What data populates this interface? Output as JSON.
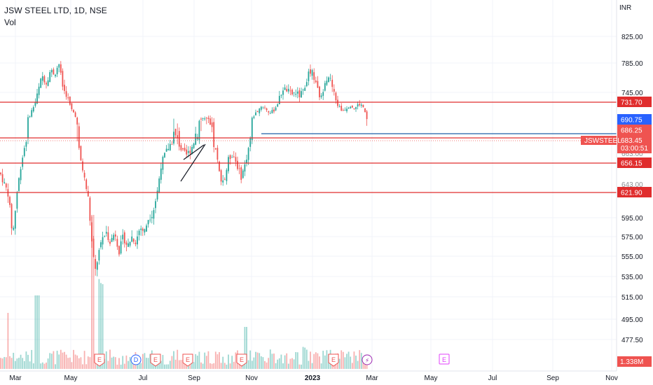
{
  "header": {
    "title": "JSW STEEL LTD, 1D, NSE",
    "volume_label": "Vol",
    "currency": "INR"
  },
  "colors": {
    "up": "#26a69a",
    "down": "#ef5350",
    "level": "#e02d2d",
    "trend": "#1e5fa8",
    "grid": "#f0f3fa",
    "earnings": "#ef5350",
    "dividend": "#2962ff",
    "split": "#9c27b0",
    "future_earnings": "#e040fb"
  },
  "chart_data": {
    "type": "candlestick",
    "symbol": "JSWSTEEL",
    "y_ticks": [
      825.0,
      785.0,
      745.0,
      595.0,
      575.0,
      555.0,
      535.0,
      515.0,
      495.0,
      477.5
    ],
    "x_ticks": [
      {
        "label": "Mar",
        "bold": false
      },
      {
        "label": "May",
        "bold": false
      },
      {
        "label": "Jul",
        "bold": false
      },
      {
        "label": "Sep",
        "bold": false
      },
      {
        "label": "Nov",
        "bold": false
      },
      {
        "label": "2023",
        "bold": true
      },
      {
        "label": "Mar",
        "bold": false
      },
      {
        "label": "May",
        "bold": false
      },
      {
        "label": "Jul",
        "bold": false
      },
      {
        "label": "Sep",
        "bold": false
      },
      {
        "label": "Nov",
        "bold": false
      }
    ],
    "horizontal_levels": [
      {
        "value": 731.7,
        "label": "731.70"
      },
      {
        "value": 683.45,
        "label": "683.45"
      },
      {
        "value": 656.15,
        "label": "656.15"
      },
      {
        "value": 621.9,
        "label": "621.90"
      }
    ],
    "price_tags": [
      {
        "value": 690.75,
        "label": "690.75",
        "color": "#2962ff"
      },
      {
        "value": 686.25,
        "label": "686.25",
        "color": "#ef5350"
      }
    ],
    "last_price": {
      "symbol": "JSWSTEEL",
      "value": 683.45,
      "label": "683.45",
      "countdown": "03:00:51"
    },
    "trend_line_value": 687.0,
    "volume_label": "1.338M",
    "events": [
      {
        "type": "E",
        "label": "E"
      },
      {
        "type": "D",
        "label": "D"
      },
      {
        "type": "E",
        "label": "E"
      },
      {
        "type": "E",
        "label": "E"
      },
      {
        "type": "E",
        "label": "E"
      },
      {
        "type": "E",
        "label": "E"
      },
      {
        "type": "S",
        "label": "⚡"
      },
      {
        "type": "E-future",
        "label": "E"
      }
    ],
    "price_path": [
      [
        0,
        645
      ],
      [
        6,
        632
      ],
      [
        12,
        620
      ],
      [
        18,
        575
      ],
      [
        24,
        620
      ],
      [
        30,
        655
      ],
      [
        36,
        680
      ],
      [
        42,
        700
      ],
      [
        48,
        722
      ],
      [
        54,
        745
      ],
      [
        60,
        768
      ],
      [
        66,
        758
      ],
      [
        72,
        775
      ],
      [
        78,
        770
      ],
      [
        84,
        785
      ],
      [
        90,
        750
      ],
      [
        96,
        740
      ],
      [
        102,
        715
      ],
      [
        108,
        700
      ],
      [
        114,
        665
      ],
      [
        120,
        640
      ],
      [
        126,
        615
      ],
      [
        132,
        560
      ],
      [
        136,
        540
      ],
      [
        140,
        555
      ],
      [
        146,
        575
      ],
      [
        152,
        578
      ],
      [
        158,
        570
      ],
      [
        164,
        580
      ],
      [
        170,
        560
      ],
      [
        176,
        575
      ],
      [
        182,
        565
      ],
      [
        188,
        575
      ],
      [
        194,
        570
      ],
      [
        200,
        585
      ],
      [
        206,
        580
      ],
      [
        212,
        595
      ],
      [
        218,
        600
      ],
      [
        224,
        620
      ],
      [
        230,
        655
      ],
      [
        236,
        668
      ],
      [
        242,
        678
      ],
      [
        248,
        685
      ],
      [
        254,
        682
      ],
      [
        260,
        670
      ],
      [
        266,
        666
      ],
      [
        272,
        672
      ],
      [
        278,
        685
      ],
      [
        284,
        690
      ],
      [
        290,
        694
      ],
      [
        296,
        690
      ],
      [
        302,
        686
      ],
      [
        308,
        670
      ],
      [
        314,
        640
      ],
      [
        320,
        635
      ],
      [
        326,
        660
      ],
      [
        332,
        668
      ],
      [
        338,
        655
      ],
      [
        344,
        640
      ],
      [
        350,
        655
      ],
      [
        356,
        680
      ],
      [
        362,
        700
      ],
      [
        368,
        712
      ],
      [
        374,
        725
      ],
      [
        380,
        715
      ],
      [
        386,
        706
      ],
      [
        392,
        715
      ],
      [
        398,
        735
      ],
      [
        404,
        750
      ],
      [
        410,
        748
      ],
      [
        416,
        742
      ],
      [
        422,
        745
      ],
      [
        428,
        740
      ],
      [
        434,
        750
      ],
      [
        440,
        770
      ],
      [
        446,
        772
      ],
      [
        452,
        752
      ],
      [
        458,
        735
      ],
      [
        464,
        762
      ],
      [
        470,
        768
      ],
      [
        476,
        746
      ],
      [
        482,
        725
      ],
      [
        488,
        712
      ],
      [
        494,
        718
      ],
      [
        500,
        725
      ],
      [
        506,
        716
      ],
      [
        512,
        728
      ],
      [
        518,
        722
      ],
      [
        522,
        700
      ],
      [
        525,
        683
      ]
    ]
  }
}
